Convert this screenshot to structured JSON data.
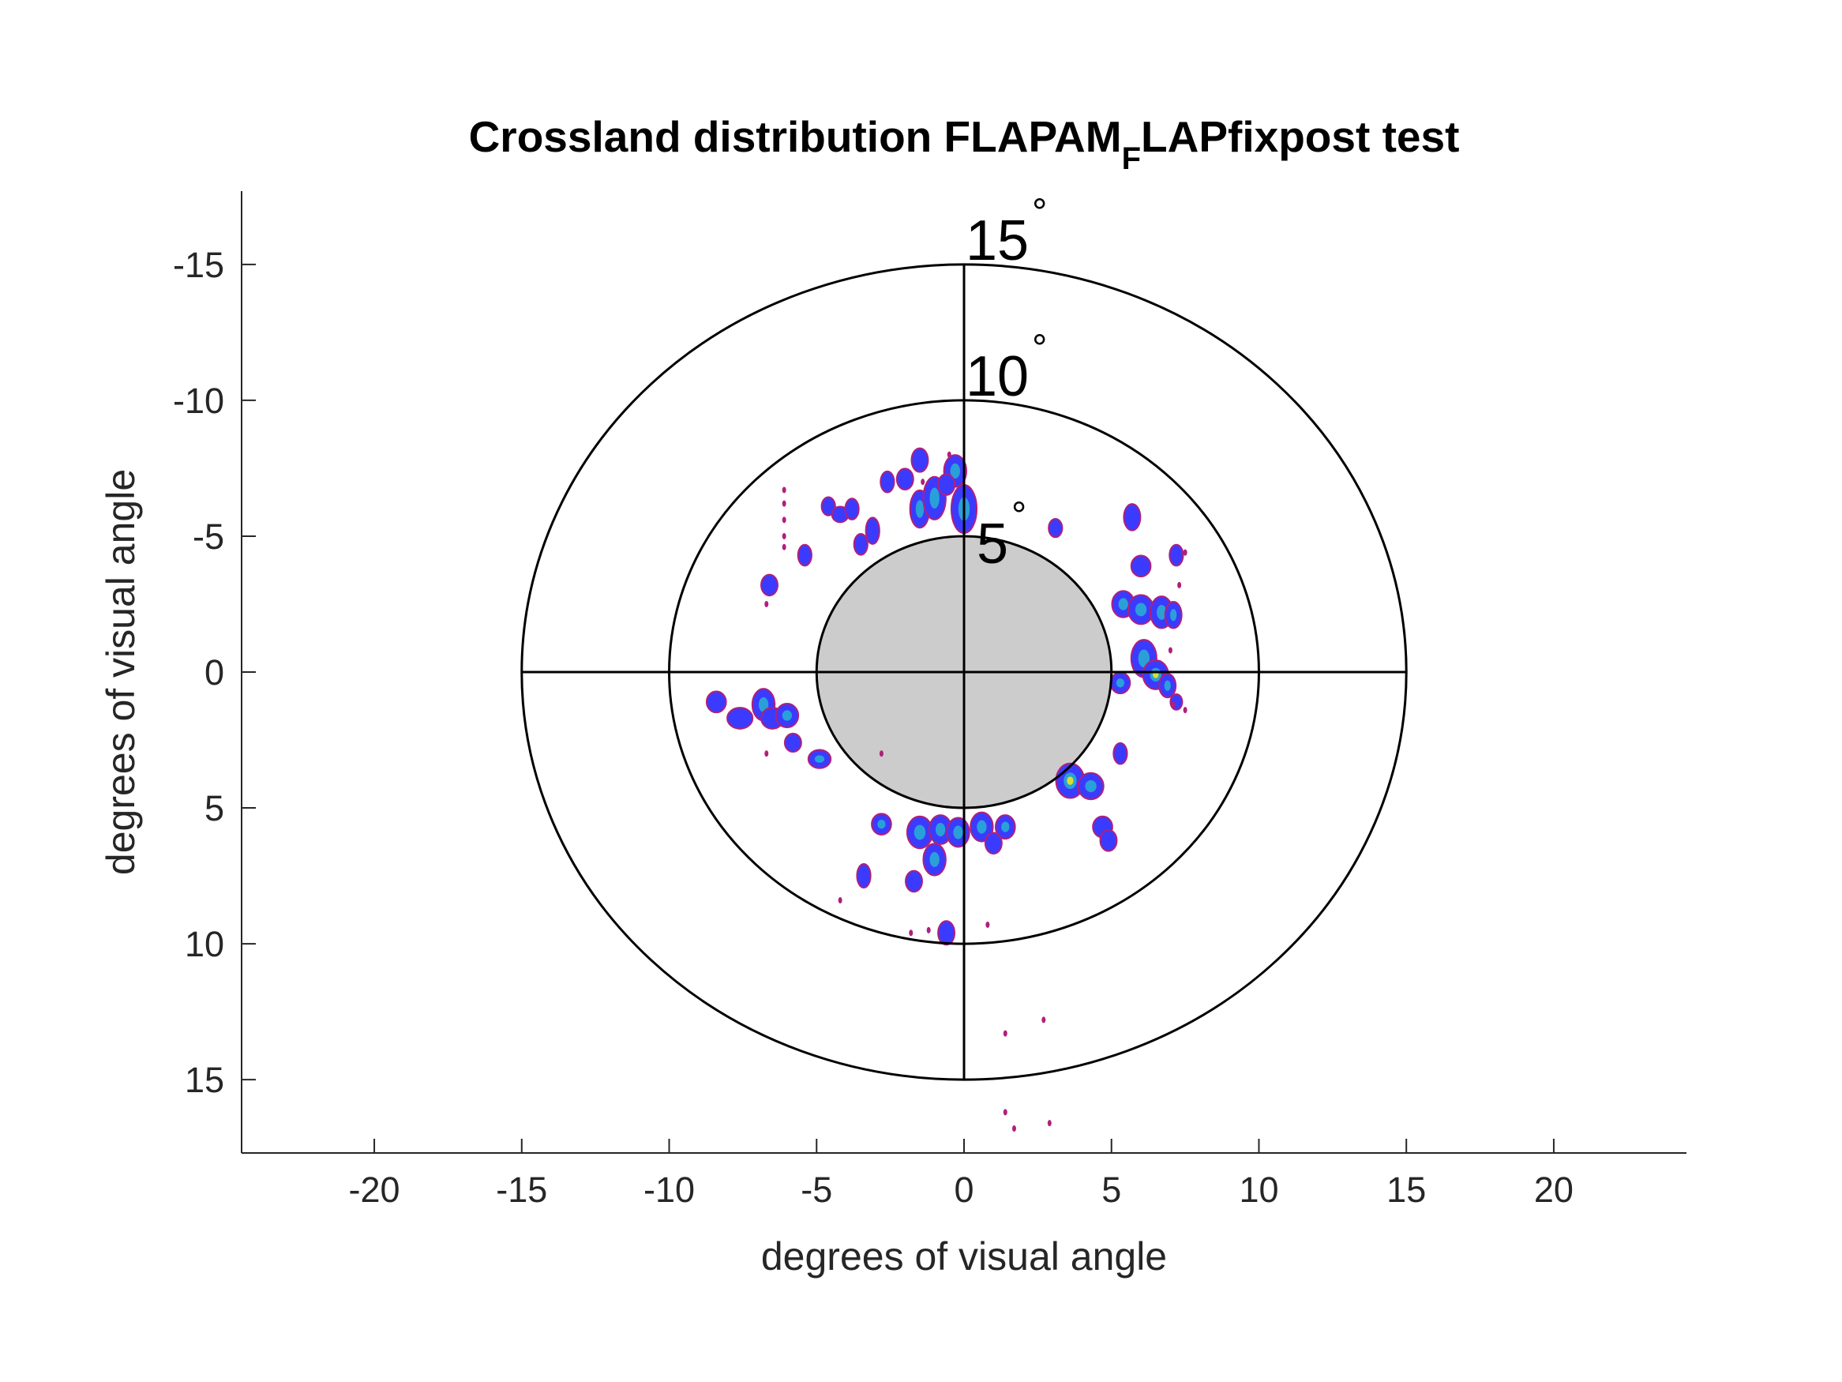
{
  "chart_data": {
    "type": "heatmap",
    "title_main": "Crossland distribution FLAPAM",
    "title_subscript": "F",
    "title_rest": "LAPfixpost test",
    "xlabel": "degrees of visual angle",
    "ylabel": "degrees of visual angle",
    "xlim": [
      -24.5,
      24.5
    ],
    "ylim": [
      -17.7,
      17.7
    ],
    "y_reversed": true,
    "grid": false,
    "x_ticks": [
      -20,
      -15,
      -10,
      -5,
      0,
      5,
      10,
      15,
      20
    ],
    "y_ticks": [
      -15,
      -10,
      -5,
      0,
      5,
      10,
      15
    ],
    "x_tick_labels": [
      "-20",
      "-15",
      "-10",
      "-5",
      "0",
      "5",
      "10",
      "15",
      "20"
    ],
    "y_tick_labels": [
      "-15",
      "-10",
      "-5",
      "0",
      "5",
      "10",
      "15"
    ],
    "rings": [
      {
        "radius": 15,
        "label": "15",
        "unit": "°"
      },
      {
        "radius": 10,
        "label": "10",
        "unit": "°"
      },
      {
        "radius": 5,
        "label": "5",
        "unit": "°"
      }
    ],
    "crosshair_extent": 15,
    "scotoma": {
      "cx": 0,
      "cy": 0,
      "radius": 5,
      "color": "#cccccc"
    },
    "colors": {
      "low": "#3b3bff",
      "mid": "#2aa0d8",
      "high": "#d8e030",
      "edge": "#b0207a",
      "axis": "#262626",
      "ring": "#000000"
    },
    "clusters": [
      {
        "x": -8.4,
        "y": 1.1,
        "rx": 0.25,
        "ry": 0.3,
        "level": 0.2
      },
      {
        "x": -7.6,
        "y": 1.7,
        "rx": 0.35,
        "ry": 0.3,
        "level": 0.2
      },
      {
        "x": -6.8,
        "y": 1.2,
        "rx": 0.3,
        "ry": 0.5,
        "level": 0.3
      },
      {
        "x": -6.5,
        "y": 1.7,
        "rx": 0.3,
        "ry": 0.3,
        "level": 0.25
      },
      {
        "x": -6.0,
        "y": 1.6,
        "rx": 0.3,
        "ry": 0.35,
        "level": 0.3
      },
      {
        "x": -5.8,
        "y": 2.6,
        "rx": 0.2,
        "ry": 0.25,
        "level": 0.2
      },
      {
        "x": -6.6,
        "y": -3.2,
        "rx": 0.2,
        "ry": 0.3,
        "level": 0.2
      },
      {
        "x": -5.4,
        "y": -4.3,
        "rx": 0.15,
        "ry": 0.3,
        "level": 0.2
      },
      {
        "x": -4.6,
        "y": -6.1,
        "rx": 0.15,
        "ry": 0.25,
        "level": 0.2
      },
      {
        "x": -4.2,
        "y": -5.8,
        "rx": 0.2,
        "ry": 0.2,
        "level": 0.2
      },
      {
        "x": -3.8,
        "y": -6.0,
        "rx": 0.15,
        "ry": 0.3,
        "level": 0.2
      },
      {
        "x": -3.5,
        "y": -4.7,
        "rx": 0.15,
        "ry": 0.3,
        "level": 0.2
      },
      {
        "x": -3.1,
        "y": -5.2,
        "rx": 0.15,
        "ry": 0.4,
        "level": 0.2
      },
      {
        "x": -2.6,
        "y": -7.0,
        "rx": 0.15,
        "ry": 0.3,
        "level": 0.2
      },
      {
        "x": -2.0,
        "y": -7.1,
        "rx": 0.2,
        "ry": 0.3,
        "level": 0.2
      },
      {
        "x": -1.5,
        "y": -7.8,
        "rx": 0.2,
        "ry": 0.35,
        "level": 0.25
      },
      {
        "x": -1.5,
        "y": -6.0,
        "rx": 0.25,
        "ry": 0.6,
        "level": 0.3
      },
      {
        "x": -1.0,
        "y": -6.4,
        "rx": 0.3,
        "ry": 0.7,
        "level": 0.3
      },
      {
        "x": -0.3,
        "y": -7.4,
        "rx": 0.3,
        "ry": 0.5,
        "level": 0.3
      },
      {
        "x": 0.0,
        "y": -6.0,
        "rx": 0.35,
        "ry": 0.8,
        "level": 0.55
      },
      {
        "x": -0.6,
        "y": -6.9,
        "rx": 0.2,
        "ry": 0.3,
        "level": 0.2
      },
      {
        "x": 3.1,
        "y": -5.3,
        "rx": 0.15,
        "ry": 0.25,
        "level": 0.2
      },
      {
        "x": 5.7,
        "y": -5.7,
        "rx": 0.2,
        "ry": 0.4,
        "level": 0.25
      },
      {
        "x": 6.0,
        "y": -3.9,
        "rx": 0.25,
        "ry": 0.3,
        "level": 0.2
      },
      {
        "x": 7.2,
        "y": -4.3,
        "rx": 0.15,
        "ry": 0.3,
        "level": 0.2
      },
      {
        "x": 5.4,
        "y": -2.5,
        "rx": 0.3,
        "ry": 0.4,
        "level": 0.4
      },
      {
        "x": 6.0,
        "y": -2.3,
        "rx": 0.35,
        "ry": 0.45,
        "level": 0.5
      },
      {
        "x": 6.7,
        "y": -2.2,
        "rx": 0.3,
        "ry": 0.5,
        "level": 0.4
      },
      {
        "x": 7.1,
        "y": -2.1,
        "rx": 0.2,
        "ry": 0.4,
        "level": 0.3
      },
      {
        "x": 6.1,
        "y": -0.5,
        "rx": 0.35,
        "ry": 0.6,
        "level": 0.45
      },
      {
        "x": 6.5,
        "y": 0.1,
        "rx": 0.35,
        "ry": 0.45,
        "level": 0.8
      },
      {
        "x": 5.3,
        "y": 0.4,
        "rx": 0.25,
        "ry": 0.3,
        "level": 0.5
      },
      {
        "x": 6.9,
        "y": 0.5,
        "rx": 0.2,
        "ry": 0.35,
        "level": 0.3
      },
      {
        "x": 7.2,
        "y": 1.1,
        "rx": 0.12,
        "ry": 0.2,
        "level": 0.2
      },
      {
        "x": -4.9,
        "y": 3.2,
        "rx": 0.3,
        "ry": 0.25,
        "level": 0.5
      },
      {
        "x": -2.8,
        "y": 5.6,
        "rx": 0.25,
        "ry": 0.3,
        "level": 0.3
      },
      {
        "x": -1.5,
        "y": 5.9,
        "rx": 0.35,
        "ry": 0.5,
        "level": 0.3
      },
      {
        "x": -1.0,
        "y": 6.9,
        "rx": 0.3,
        "ry": 0.5,
        "level": 0.3
      },
      {
        "x": -0.8,
        "y": 5.8,
        "rx": 0.3,
        "ry": 0.45,
        "level": 0.3
      },
      {
        "x": -0.2,
        "y": 5.9,
        "rx": 0.3,
        "ry": 0.45,
        "level": 0.3
      },
      {
        "x": 0.6,
        "y": 5.7,
        "rx": 0.3,
        "ry": 0.45,
        "level": 0.3
      },
      {
        "x": 1.4,
        "y": 5.7,
        "rx": 0.25,
        "ry": 0.35,
        "level": 0.3
      },
      {
        "x": 1.0,
        "y": 6.3,
        "rx": 0.2,
        "ry": 0.3,
        "level": 0.25
      },
      {
        "x": -1.7,
        "y": 7.7,
        "rx": 0.2,
        "ry": 0.3,
        "level": 0.25
      },
      {
        "x": -3.4,
        "y": 7.5,
        "rx": 0.15,
        "ry": 0.35,
        "level": 0.2
      },
      {
        "x": -0.6,
        "y": 9.6,
        "rx": 0.2,
        "ry": 0.35,
        "level": 0.2
      },
      {
        "x": 3.6,
        "y": 4.0,
        "rx": 0.4,
        "ry": 0.55,
        "level": 0.85
      },
      {
        "x": 4.3,
        "y": 4.2,
        "rx": 0.35,
        "ry": 0.4,
        "level": 0.4
      },
      {
        "x": 5.3,
        "y": 3.0,
        "rx": 0.15,
        "ry": 0.3,
        "level": 0.25
      },
      {
        "x": 4.7,
        "y": 5.7,
        "rx": 0.25,
        "ry": 0.3,
        "level": 0.25
      },
      {
        "x": 4.9,
        "y": 6.2,
        "rx": 0.2,
        "ry": 0.3,
        "level": 0.2
      }
    ],
    "specks": [
      [
        -6.1,
        -6.7
      ],
      [
        -6.1,
        -6.2
      ],
      [
        -6.1,
        -5.6
      ],
      [
        -6.1,
        -5.0
      ],
      [
        -6.1,
        -4.6
      ],
      [
        -6.7,
        -2.5
      ],
      [
        -6.7,
        3.0
      ],
      [
        -4.2,
        8.4
      ],
      [
        -2.8,
        3.0
      ],
      [
        -1.8,
        9.6
      ],
      [
        -1.2,
        9.5
      ],
      [
        0.8,
        9.3
      ],
      [
        1.4,
        13.3
      ],
      [
        2.7,
        12.8
      ],
      [
        1.4,
        16.2
      ],
      [
        1.7,
        16.8
      ],
      [
        2.9,
        16.6
      ],
      [
        7.5,
        -4.4
      ],
      [
        7.3,
        -3.2
      ],
      [
        7.0,
        -0.8
      ],
      [
        7.1,
        1.2
      ],
      [
        7.5,
        1.4
      ],
      [
        -1.4,
        -7.0
      ],
      [
        -0.5,
        -8.0
      ]
    ]
  }
}
